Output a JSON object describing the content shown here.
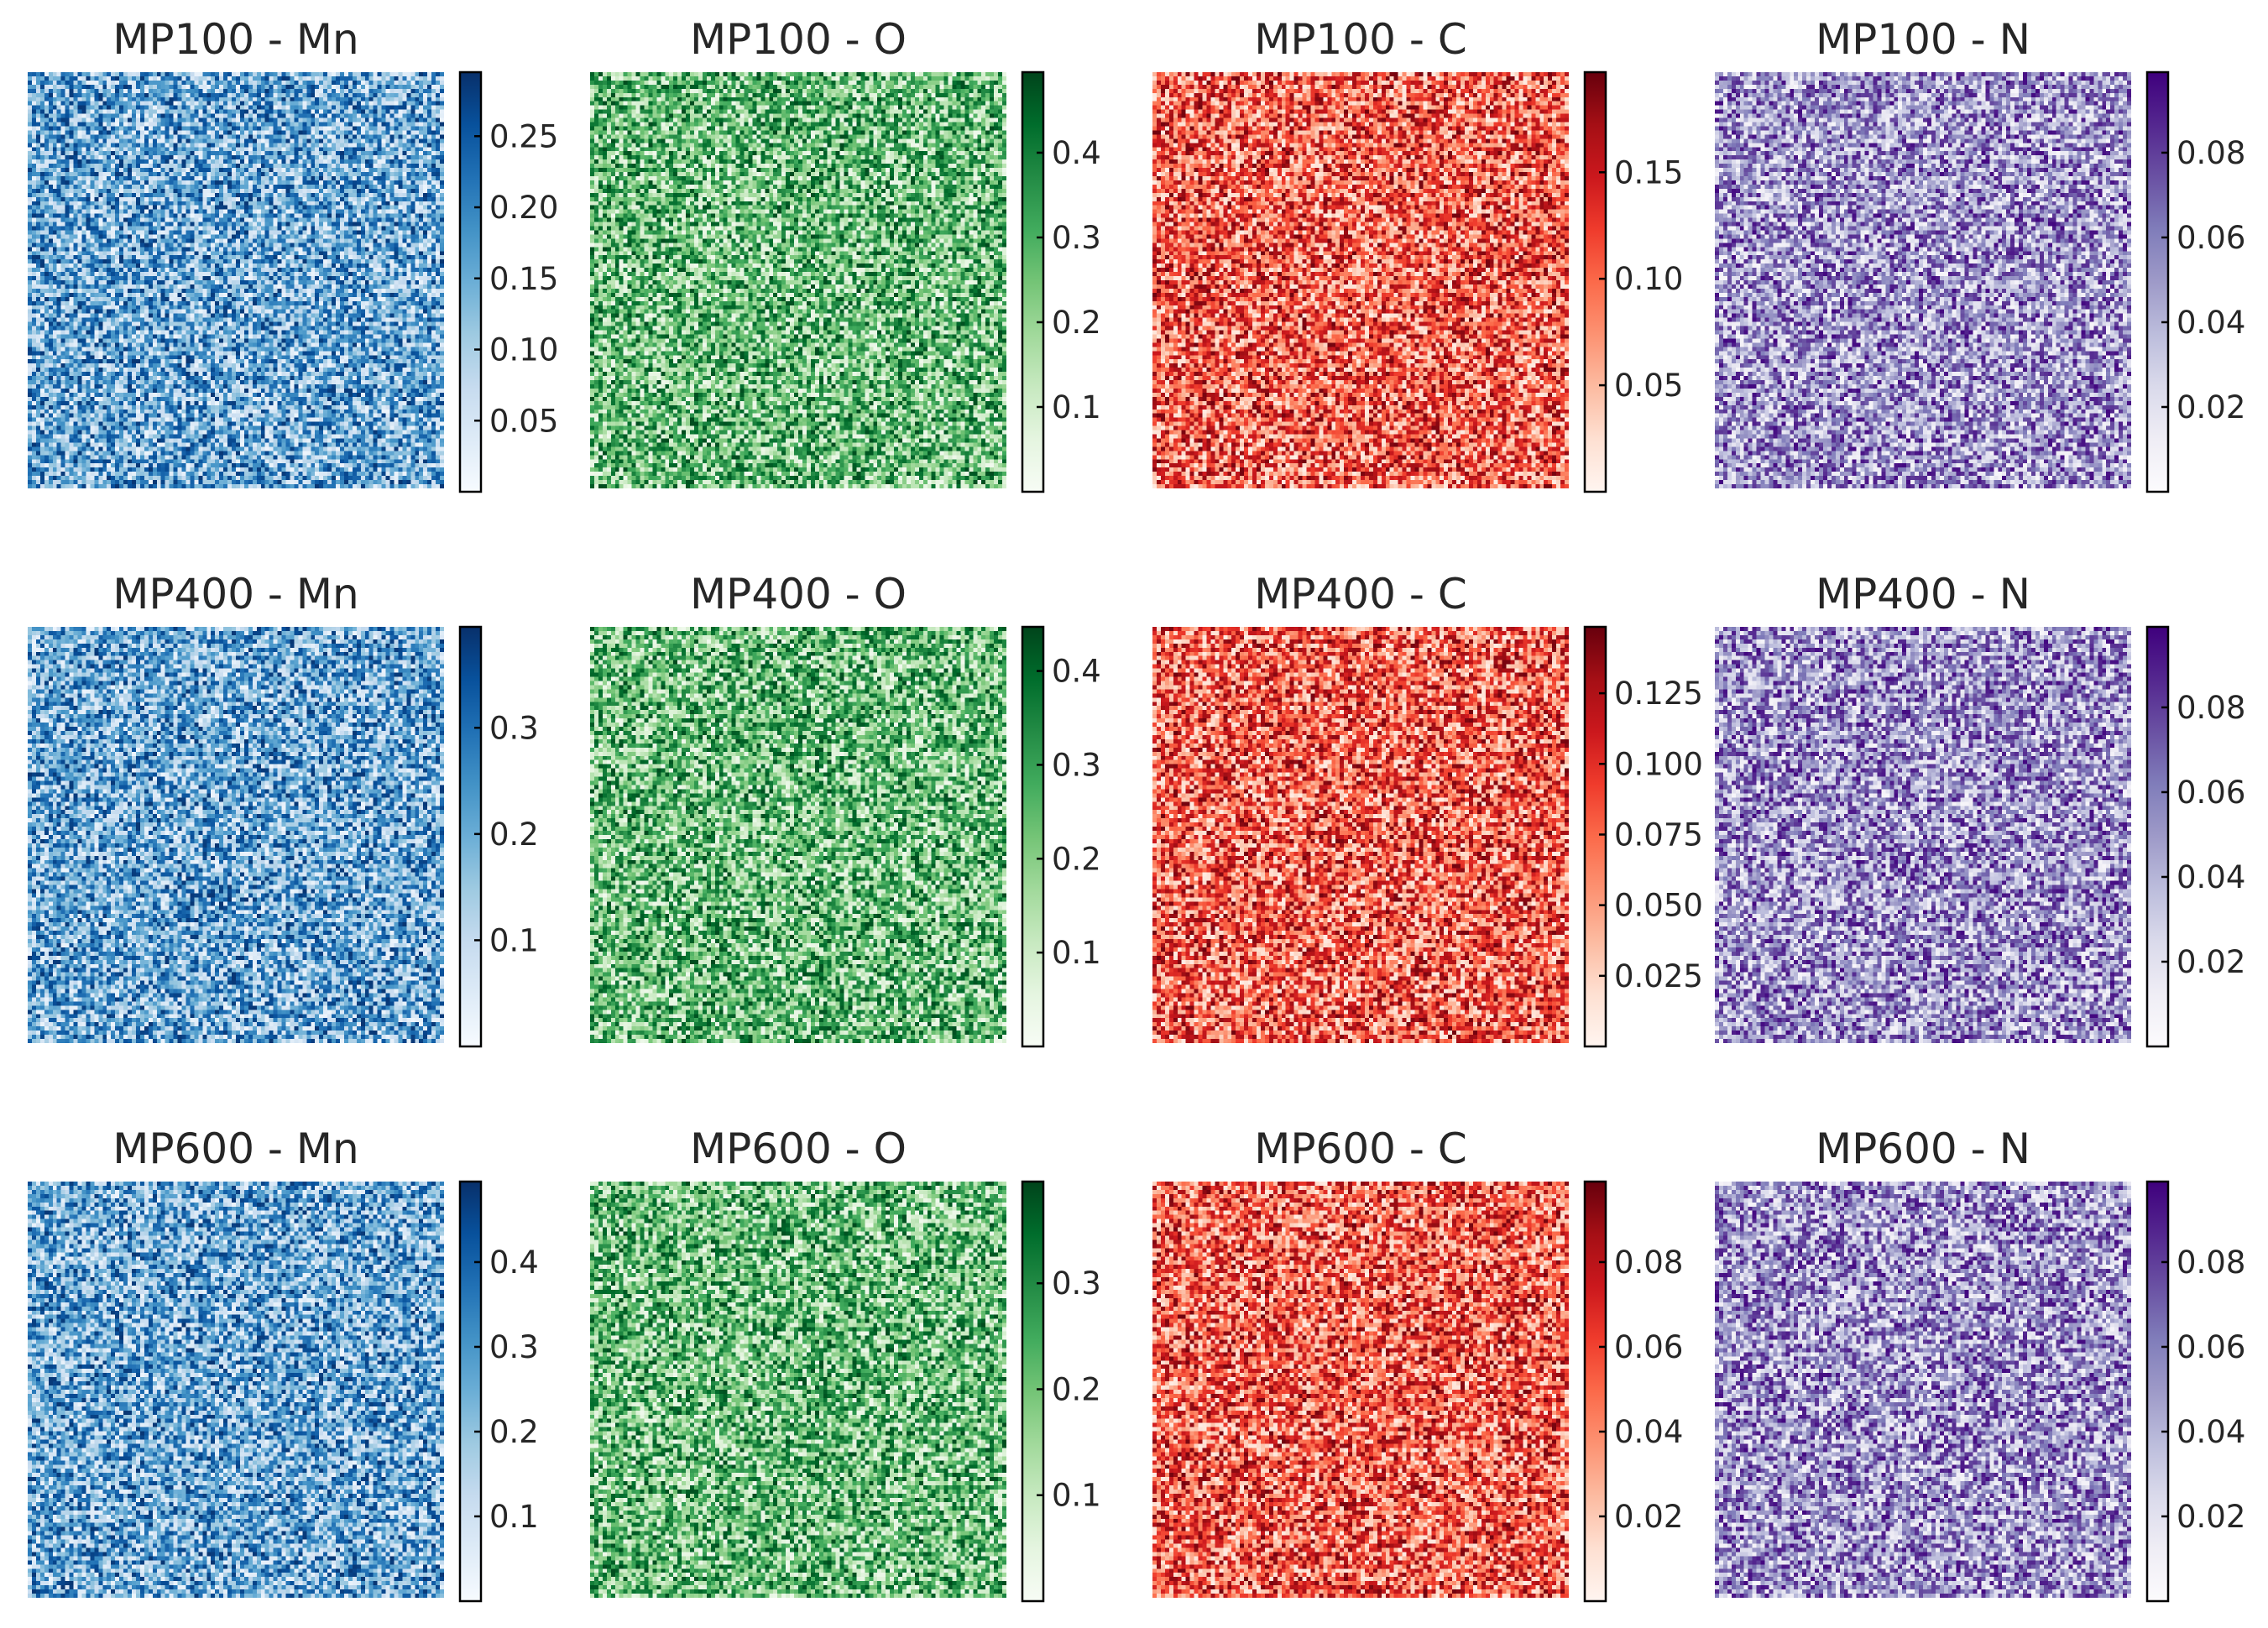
{
  "chart_data": {
    "type": "heatmap",
    "grid_rows": 3,
    "grid_cols": 4,
    "pixels_per_side": 100,
    "colormaps": {
      "Blues": [
        "#f7fbff",
        "#deebf7",
        "#c6dbef",
        "#9ecae1",
        "#6baed6",
        "#4292c6",
        "#2171b5",
        "#08519c",
        "#08306b"
      ],
      "Greens": [
        "#f7fcf5",
        "#e5f5e0",
        "#c7e9c0",
        "#a1d99b",
        "#74c476",
        "#41ab5d",
        "#238b45",
        "#006d2c",
        "#00441b"
      ],
      "Reds": [
        "#fff5f0",
        "#fee0d2",
        "#fcbba1",
        "#fc9272",
        "#fb6a4a",
        "#ef3b2c",
        "#cb181d",
        "#a50f15",
        "#67000d"
      ],
      "Purples": [
        "#fcfbfd",
        "#efedf5",
        "#dadaeb",
        "#bcbddc",
        "#9e9ac8",
        "#807dba",
        "#6a51a3",
        "#54278f",
        "#3f007d"
      ]
    },
    "panels": [
      {
        "title": "MP100 - Mn",
        "cmap": "Blues",
        "vmin": 0,
        "vmax": 0.295,
        "ticks": [
          0.05,
          0.1,
          0.15,
          0.2,
          0.25
        ],
        "tick_labels": [
          "0.05",
          "0.10",
          "0.15",
          "0.20",
          "0.25"
        ]
      },
      {
        "title": "MP100 - O",
        "cmap": "Greens",
        "vmin": 0,
        "vmax": 0.495,
        "ticks": [
          0.1,
          0.2,
          0.3,
          0.4
        ],
        "tick_labels": [
          "0.1",
          "0.2",
          "0.3",
          "0.4"
        ]
      },
      {
        "title": "MP100 - C",
        "cmap": "Reds",
        "vmin": 0,
        "vmax": 0.197,
        "ticks": [
          0.05,
          0.1,
          0.15
        ],
        "tick_labels": [
          "0.05",
          "0.10",
          "0.15"
        ]
      },
      {
        "title": "MP100 - N",
        "cmap": "Purples",
        "vmin": 0,
        "vmax": 0.099,
        "ticks": [
          0.02,
          0.04,
          0.06,
          0.08
        ],
        "tick_labels": [
          "0.02",
          "0.04",
          "0.06",
          "0.08"
        ]
      },
      {
        "title": "MP400 - Mn",
        "cmap": "Blues",
        "vmin": 0,
        "vmax": 0.395,
        "ticks": [
          0.1,
          0.2,
          0.3
        ],
        "tick_labels": [
          "0.1",
          "0.2",
          "0.3"
        ]
      },
      {
        "title": "MP400 - O",
        "cmap": "Greens",
        "vmin": 0,
        "vmax": 0.447,
        "ticks": [
          0.1,
          0.2,
          0.3,
          0.4
        ],
        "tick_labels": [
          "0.1",
          "0.2",
          "0.3",
          "0.4"
        ]
      },
      {
        "title": "MP400 - C",
        "cmap": "Reds",
        "vmin": 0,
        "vmax": 0.1485,
        "ticks": [
          0.025,
          0.05,
          0.075,
          0.1,
          0.125
        ],
        "tick_labels": [
          "0.025",
          "0.050",
          "0.075",
          "0.100",
          "0.125"
        ]
      },
      {
        "title": "MP400 - N",
        "cmap": "Purples",
        "vmin": 0,
        "vmax": 0.099,
        "ticks": [
          0.02,
          0.04,
          0.06,
          0.08
        ],
        "tick_labels": [
          "0.02",
          "0.04",
          "0.06",
          "0.08"
        ]
      },
      {
        "title": "MP600 - Mn",
        "cmap": "Blues",
        "vmin": 0,
        "vmax": 0.495,
        "ticks": [
          0.1,
          0.2,
          0.3,
          0.4
        ],
        "tick_labels": [
          "0.1",
          "0.2",
          "0.3",
          "0.4"
        ]
      },
      {
        "title": "MP600 - O",
        "cmap": "Greens",
        "vmin": 0,
        "vmax": 0.396,
        "ticks": [
          0.1,
          0.2,
          0.3
        ],
        "tick_labels": [
          "0.1",
          "0.2",
          "0.3"
        ]
      },
      {
        "title": "MP600 - C",
        "cmap": "Reds",
        "vmin": 0,
        "vmax": 0.099,
        "ticks": [
          0.02,
          0.04,
          0.06,
          0.08
        ],
        "tick_labels": [
          "0.02",
          "0.04",
          "0.06",
          "0.08"
        ]
      },
      {
        "title": "MP600 - N",
        "cmap": "Purples",
        "vmin": 0,
        "vmax": 0.099,
        "ticks": [
          0.02,
          0.04,
          0.06,
          0.08
        ],
        "tick_labels": [
          "0.02",
          "0.04",
          "0.06",
          "0.08"
        ]
      }
    ]
  }
}
